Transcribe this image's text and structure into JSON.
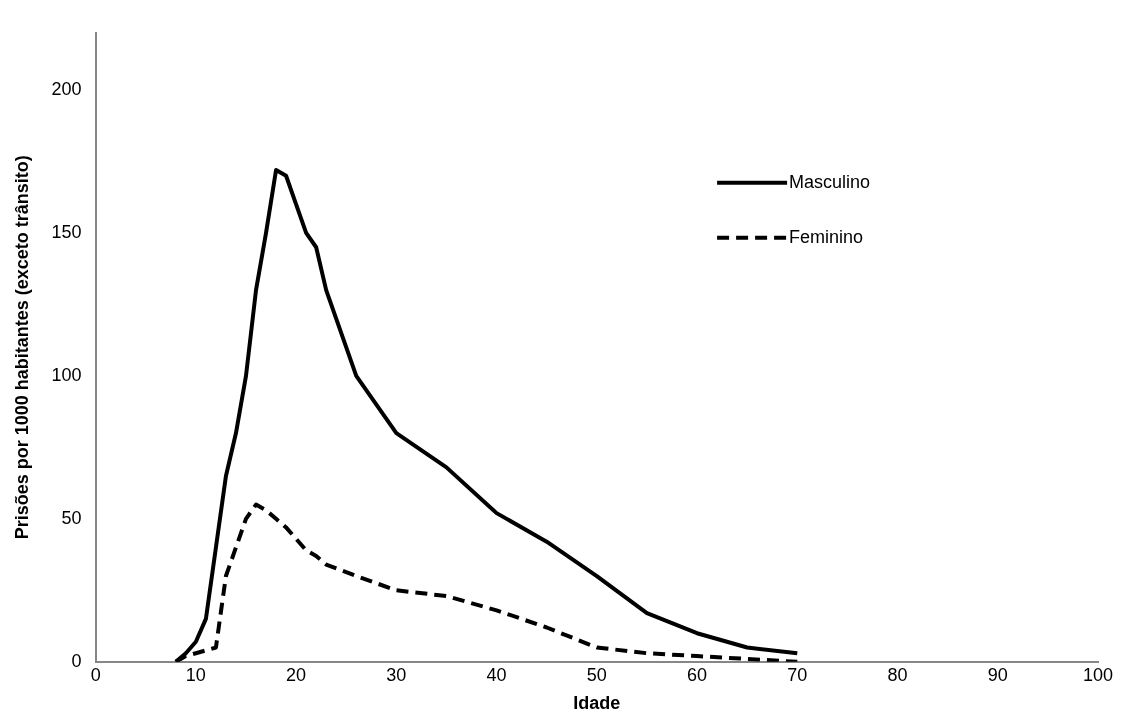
{
  "chart_data": {
    "type": "line",
    "xlabel": "Idade",
    "ylabel": "Prisões por 1000 habitantes (exceto trânsito)",
    "xlim": [
      0,
      100
    ],
    "xticks": [
      0,
      10,
      20,
      30,
      40,
      50,
      60,
      70,
      80,
      90,
      100
    ],
    "ylim": [
      0,
      220
    ],
    "yticks": [
      0,
      50,
      100,
      150,
      200
    ],
    "grid": false,
    "legend": "top right",
    "marker": "none",
    "series": [
      {
        "name": "Masculino",
        "color": "#000000",
        "line_style": "solid",
        "x": [
          8,
          9,
          10,
          11,
          12,
          13,
          14,
          15,
          16,
          17,
          18,
          19,
          20,
          21,
          22,
          23,
          26,
          30,
          35,
          40,
          45,
          50,
          55,
          60,
          65,
          70
        ],
        "values": [
          0,
          3,
          7,
          15,
          40,
          65,
          80,
          100,
          130,
          150,
          172,
          170,
          160,
          150,
          145,
          130,
          100,
          80,
          68,
          52,
          42,
          30,
          17,
          10,
          5,
          3
        ]
      },
      {
        "name": "Feminino",
        "color": "#000000",
        "line_style": "dashed",
        "x": [
          8,
          9,
          10,
          11,
          12,
          13,
          14,
          15,
          16,
          17,
          18,
          19,
          20,
          21,
          22,
          23,
          26,
          30,
          35,
          40,
          45,
          50,
          55,
          60,
          65,
          70
        ],
        "values": [
          0,
          2,
          3,
          4,
          5,
          30,
          40,
          50,
          55,
          53,
          50,
          47,
          43,
          39,
          37,
          34,
          30,
          25,
          23,
          18,
          12,
          5,
          3,
          2,
          1,
          0
        ]
      }
    ]
  }
}
